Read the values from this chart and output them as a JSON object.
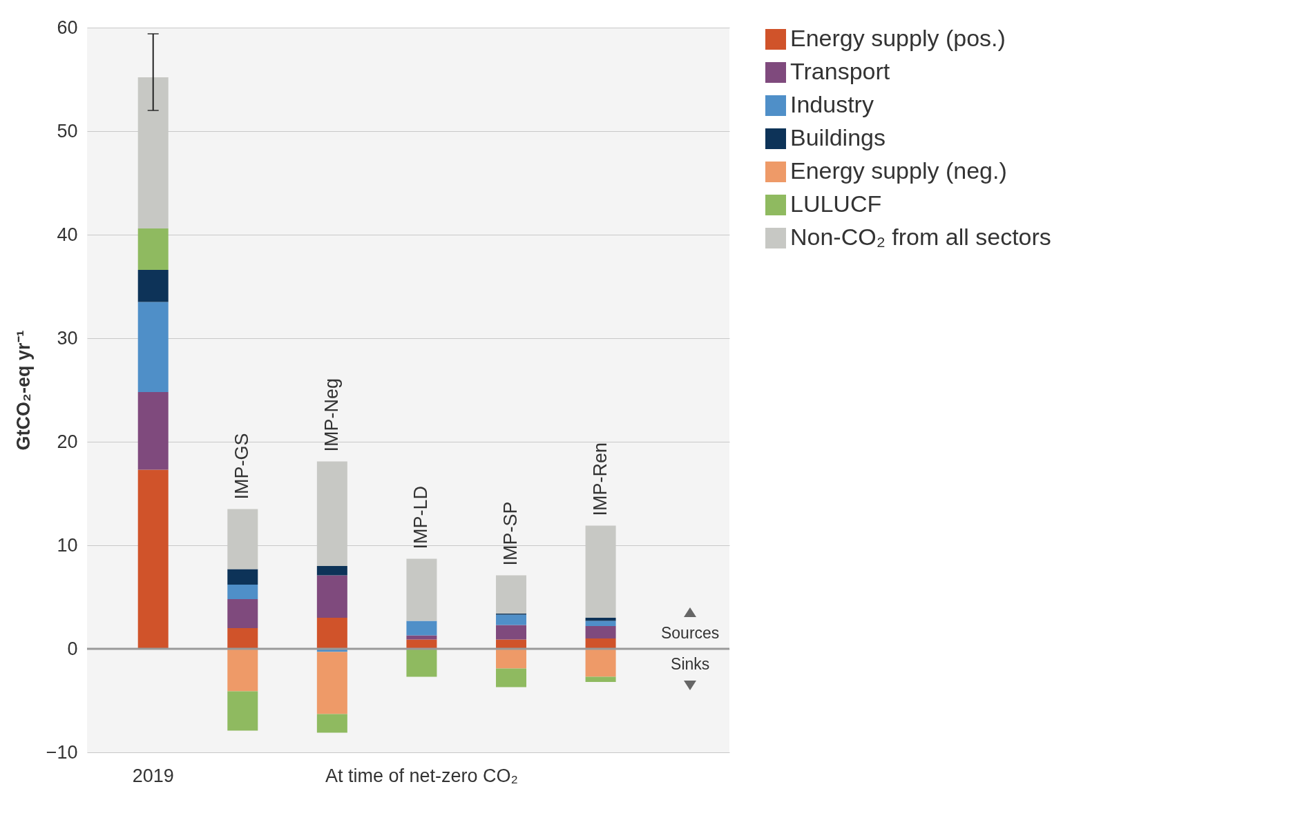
{
  "chart_data": {
    "type": "bar",
    "stacked": true,
    "ylabel": "GtCO₂-eq yr⁻¹",
    "categories": [
      "2019",
      "IMP-GS",
      "IMP-Neg",
      "IMP-LD",
      "IMP-SP",
      "IMP-Ren"
    ],
    "series": [
      {
        "name": "Energy supply (pos.)",
        "color": "#d0532a",
        "values": [
          17.3,
          2.0,
          3.0,
          0.9,
          0.9,
          1.0
        ]
      },
      {
        "name": "Transport",
        "color": "#7f4a7d",
        "values": [
          7.5,
          2.8,
          4.1,
          0.4,
          1.4,
          1.2
        ]
      },
      {
        "name": "Industry",
        "color": "#4f8fc8",
        "values": [
          8.7,
          1.4,
          -0.3,
          1.4,
          1.0,
          0.5
        ]
      },
      {
        "name": "Buildings",
        "color": "#0d3358",
        "values": [
          3.1,
          1.5,
          0.9,
          0,
          0.1,
          0.3
        ]
      },
      {
        "name": "Energy supply (neg.)",
        "color": "#ee9a68",
        "values": [
          0,
          -4.1,
          -6.0,
          0,
          -1.9,
          -2.7
        ]
      },
      {
        "name": "LULUCF",
        "color": "#8fba60",
        "values": [
          4.0,
          -3.8,
          -1.8,
          -2.7,
          -1.8,
          -0.5
        ]
      },
      {
        "name": "Non-CO₂ from all sectors",
        "color": "#c7c8c4",
        "values": [
          14.6,
          5.8,
          10.1,
          6.0,
          3.7,
          8.9
        ],
        "errors": [
          [
            52.0,
            59.4
          ],
          null,
          null,
          null,
          null,
          null
        ]
      }
    ],
    "ylim": [
      -10,
      60
    ],
    "yticks": [
      -10,
      0,
      10,
      20,
      30,
      40,
      50,
      60
    ],
    "grid": "y",
    "legend": "top right",
    "ref_lines": [
      {
        "axis": "y",
        "value": 0,
        "color": "#999999"
      }
    ],
    "annotations": [
      "At time of net-zero CO₂",
      "Sources",
      "Sinks"
    ]
  }
}
